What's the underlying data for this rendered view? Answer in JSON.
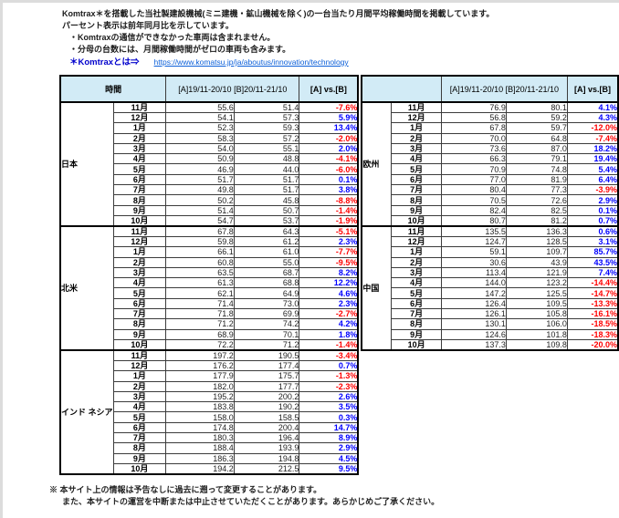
{
  "page": {
    "intro_line1": "Komtrax＊を搭載した当社製建設機械(ミニ建機・鉱山機械を除く)の一台当たり月間平均稼働時間を掲載しています。",
    "intro_line2": "パーセント表示は前年同月比を示しています。",
    "bullet1": "・Komtraxの通信ができなかった車両は含まれません。",
    "bullet2": "・分母の台数には、月間稼働時間がゼロの車両も含みます。",
    "komtrax_label": "＊Komtraxとは⇒",
    "komtrax_link": "https://www.komatsu.jp/ja/aboutus/innovation/technology",
    "footnote_line1": "※ 本サイト上の情報は予告なしに過去に遡って変更することがあります。",
    "footnote_line2": "また、本サイトの運営を中断または中止させていただくことがあります。あらかじめご了承ください。"
  },
  "colors": {
    "header_bg": "#d2ebf6",
    "positive": "#0000ff",
    "negative": "#ff0000",
    "link": "#0b5fd9",
    "komtrax_label": "#0000cc"
  },
  "tables": [
    {
      "name": "operating-hours-table-left",
      "time_header": "時間",
      "period_header": "[A]19/11-20/10 [B]20/11-21/10",
      "vs_header": "[A] vs.[B]",
      "sections": [
        {
          "region": "日本",
          "rows": [
            {
              "month": "11月",
              "a": "55.6",
              "b": "51.4",
              "vs": "-7.6%"
            },
            {
              "month": "12月",
              "a": "54.1",
              "b": "57.3",
              "vs": "5.9%"
            },
            {
              "month": "1月",
              "a": "52.3",
              "b": "59.3",
              "vs": "13.4%"
            },
            {
              "month": "2月",
              "a": "58.3",
              "b": "57.2",
              "vs": "-2.0%"
            },
            {
              "month": "3月",
              "a": "54.0",
              "b": "55.1",
              "vs": "2.0%"
            },
            {
              "month": "4月",
              "a": "50.9",
              "b": "48.8",
              "vs": "-4.1%"
            },
            {
              "month": "5月",
              "a": "46.9",
              "b": "44.0",
              "vs": "-6.0%"
            },
            {
              "month": "6月",
              "a": "51.7",
              "b": "51.7",
              "vs": "0.1%"
            },
            {
              "month": "7月",
              "a": "49.8",
              "b": "51.7",
              "vs": "3.8%"
            },
            {
              "month": "8月",
              "a": "50.2",
              "b": "45.8",
              "vs": "-8.8%"
            },
            {
              "month": "9月",
              "a": "51.4",
              "b": "50.7",
              "vs": "-1.4%"
            },
            {
              "month": "10月",
              "a": "54.7",
              "b": "53.7",
              "vs": "-1.9%"
            }
          ]
        },
        {
          "region": "北米",
          "rows": [
            {
              "month": "11月",
              "a": "67.8",
              "b": "64.3",
              "vs": "-5.1%"
            },
            {
              "month": "12月",
              "a": "59.8",
              "b": "61.2",
              "vs": "2.3%"
            },
            {
              "month": "1月",
              "a": "66.1",
              "b": "61.0",
              "vs": "-7.7%"
            },
            {
              "month": "2月",
              "a": "60.8",
              "b": "55.0",
              "vs": "-9.5%"
            },
            {
              "month": "3月",
              "a": "63.5",
              "b": "68.7",
              "vs": "8.2%"
            },
            {
              "month": "4月",
              "a": "61.3",
              "b": "68.8",
              "vs": "12.2%"
            },
            {
              "month": "5月",
              "a": "62.1",
              "b": "64.9",
              "vs": "4.6%"
            },
            {
              "month": "6月",
              "a": "71.4",
              "b": "73.0",
              "vs": "2.3%"
            },
            {
              "month": "7月",
              "a": "71.8",
              "b": "69.9",
              "vs": "-2.7%"
            },
            {
              "month": "8月",
              "a": "71.2",
              "b": "74.2",
              "vs": "4.2%"
            },
            {
              "month": "9月",
              "a": "68.9",
              "b": "70.1",
              "vs": "1.8%"
            },
            {
              "month": "10月",
              "a": "72.2",
              "b": "71.2",
              "vs": "-1.4%"
            }
          ]
        },
        {
          "region": "インド\nネシア",
          "rows": [
            {
              "month": "11月",
              "a": "197.2",
              "b": "190.5",
              "vs": "-3.4%"
            },
            {
              "month": "12月",
              "a": "176.2",
              "b": "177.4",
              "vs": "0.7%"
            },
            {
              "month": "1月",
              "a": "177.9",
              "b": "175.7",
              "vs": "-1.3%"
            },
            {
              "month": "2月",
              "a": "182.0",
              "b": "177.7",
              "vs": "-2.3%"
            },
            {
              "month": "3月",
              "a": "195.2",
              "b": "200.2",
              "vs": "2.6%"
            },
            {
              "month": "4月",
              "a": "183.8",
              "b": "190.2",
              "vs": "3.5%"
            },
            {
              "month": "5月",
              "a": "158.0",
              "b": "158.5",
              "vs": "0.3%"
            },
            {
              "month": "6月",
              "a": "174.8",
              "b": "200.4",
              "vs": "14.7%"
            },
            {
              "month": "7月",
              "a": "180.3",
              "b": "196.4",
              "vs": "8.9%"
            },
            {
              "month": "8月",
              "a": "188.4",
              "b": "193.9",
              "vs": "2.9%"
            },
            {
              "month": "9月",
              "a": "186.3",
              "b": "194.8",
              "vs": "4.5%"
            },
            {
              "month": "10月",
              "a": "194.2",
              "b": "212.5",
              "vs": "9.5%"
            }
          ]
        }
      ]
    },
    {
      "name": "operating-hours-table-right",
      "time_header": "",
      "period_header": "[A]19/11-20/10 [B]20/11-21/10",
      "vs_header": "[A] vs.[B]",
      "sections": [
        {
          "region": "欧州",
          "rows": [
            {
              "month": "11月",
              "a": "76.9",
              "b": "80.1",
              "vs": "4.1%"
            },
            {
              "month": "12月",
              "a": "56.8",
              "b": "59.2",
              "vs": "4.3%"
            },
            {
              "month": "1月",
              "a": "67.8",
              "b": "59.7",
              "vs": "-12.0%"
            },
            {
              "month": "2月",
              "a": "70.0",
              "b": "64.8",
              "vs": "-7.4%"
            },
            {
              "month": "3月",
              "a": "73.6",
              "b": "87.0",
              "vs": "18.2%"
            },
            {
              "month": "4月",
              "a": "66.3",
              "b": "79.1",
              "vs": "19.4%"
            },
            {
              "month": "5月",
              "a": "70.9",
              "b": "74.8",
              "vs": "5.4%"
            },
            {
              "month": "6月",
              "a": "77.0",
              "b": "81.9",
              "vs": "6.4%"
            },
            {
              "month": "7月",
              "a": "80.4",
              "b": "77.3",
              "vs": "-3.9%"
            },
            {
              "month": "8月",
              "a": "70.5",
              "b": "72.6",
              "vs": "2.9%"
            },
            {
              "month": "9月",
              "a": "82.4",
              "b": "82.5",
              "vs": "0.1%"
            },
            {
              "month": "10月",
              "a": "80.7",
              "b": "81.2",
              "vs": "0.7%"
            }
          ]
        },
        {
          "region": "中国",
          "rows": [
            {
              "month": "11月",
              "a": "135.5",
              "b": "136.3",
              "vs": "0.6%"
            },
            {
              "month": "12月",
              "a": "124.7",
              "b": "128.5",
              "vs": "3.1%"
            },
            {
              "month": "1月",
              "a": "59.1",
              "b": "109.7",
              "vs": "85.7%"
            },
            {
              "month": "2月",
              "a": "30.6",
              "b": "43.9",
              "vs": "43.5%"
            },
            {
              "month": "3月",
              "a": "113.4",
              "b": "121.9",
              "vs": "7.4%"
            },
            {
              "month": "4月",
              "a": "144.0",
              "b": "123.2",
              "vs": "-14.4%"
            },
            {
              "month": "5月",
              "a": "147.2",
              "b": "125.5",
              "vs": "-14.7%"
            },
            {
              "month": "6月",
              "a": "126.4",
              "b": "109.5",
              "vs": "-13.3%"
            },
            {
              "month": "7月",
              "a": "126.1",
              "b": "105.8",
              "vs": "-16.1%"
            },
            {
              "month": "8月",
              "a": "130.1",
              "b": "106.0",
              "vs": "-18.5%"
            },
            {
              "month": "9月",
              "a": "124.6",
              "b": "101.8",
              "vs": "-18.3%"
            },
            {
              "month": "10月",
              "a": "137.3",
              "b": "109.8",
              "vs": "-20.0%"
            }
          ]
        }
      ]
    }
  ]
}
